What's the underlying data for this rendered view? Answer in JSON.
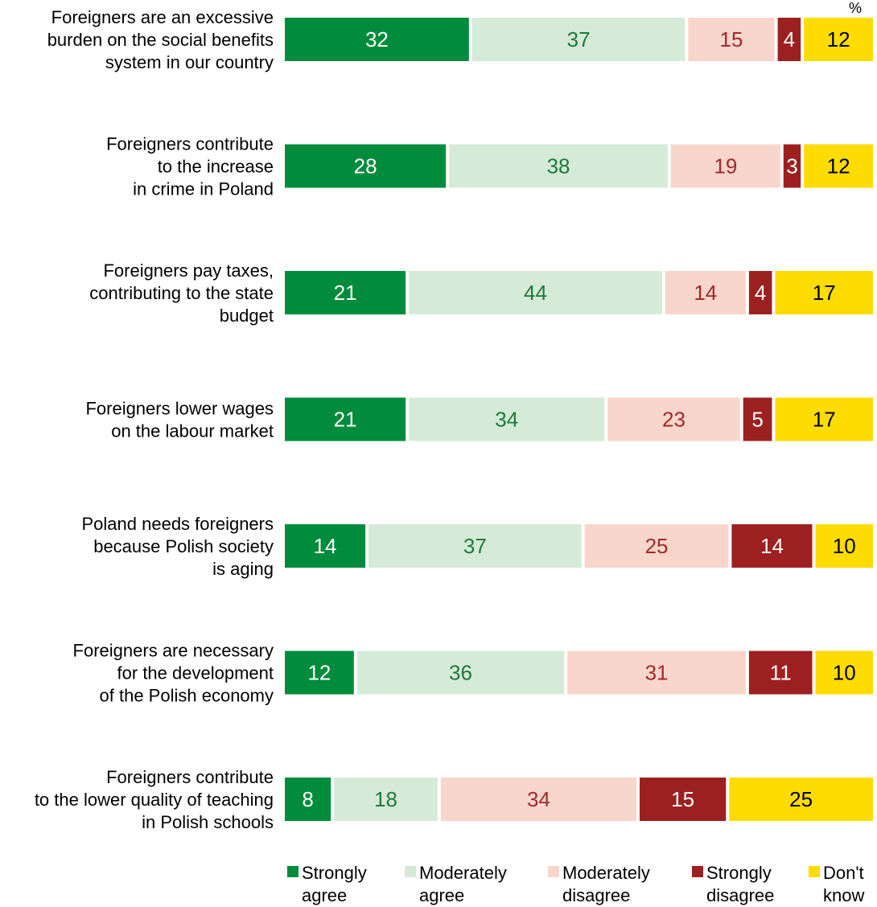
{
  "chart_data": {
    "type": "bar",
    "orientation": "horizontal",
    "stacked": true,
    "unit": "%",
    "categories": [
      [
        "Foreigners are an excessive",
        "burden on the social benefits",
        "system in our country"
      ],
      [
        "Foreigners contribute",
        "to the increase",
        "in crime in Poland"
      ],
      [
        "Foreigners pay taxes,",
        "contributing to the state",
        "budget"
      ],
      [
        "Foreigners lower wages",
        "on the labour market"
      ],
      [
        "Poland needs foreigners",
        "because Polish society",
        "is aging"
      ],
      [
        "Foreigners are necessary",
        "for the development",
        "of the Polish economy"
      ],
      [
        "Foreigners contribute",
        "to the lower quality of teaching",
        "in Polish schools"
      ]
    ],
    "series": [
      {
        "name": [
          "Strongly",
          "agree"
        ],
        "color": "#008c3c",
        "label_color": "#ffffff",
        "values": [
          32,
          28,
          21,
          21,
          14,
          12,
          8
        ]
      },
      {
        "name": [
          "Moderately",
          "agree"
        ],
        "color": "#d6ead8",
        "label_color": "#1e7a3a",
        "values": [
          37,
          38,
          44,
          34,
          37,
          36,
          18
        ]
      },
      {
        "name": [
          "Moderately",
          "disagree"
        ],
        "color": "#f8d6cc",
        "label_color": "#a3282a",
        "values": [
          15,
          19,
          14,
          23,
          25,
          31,
          34
        ]
      },
      {
        "name": [
          "Strongly",
          "disagree"
        ],
        "color": "#9d2021",
        "label_color": "#ffffff",
        "values": [
          4,
          3,
          4,
          5,
          14,
          11,
          15
        ]
      },
      {
        "name": [
          "Don't",
          "know"
        ],
        "color": "#ffdc00",
        "label_color": "#000000",
        "values": [
          12,
          12,
          17,
          17,
          10,
          10,
          25
        ]
      }
    ],
    "xlim": [
      0,
      100
    ],
    "grid": false,
    "legend_position": "bottom"
  }
}
